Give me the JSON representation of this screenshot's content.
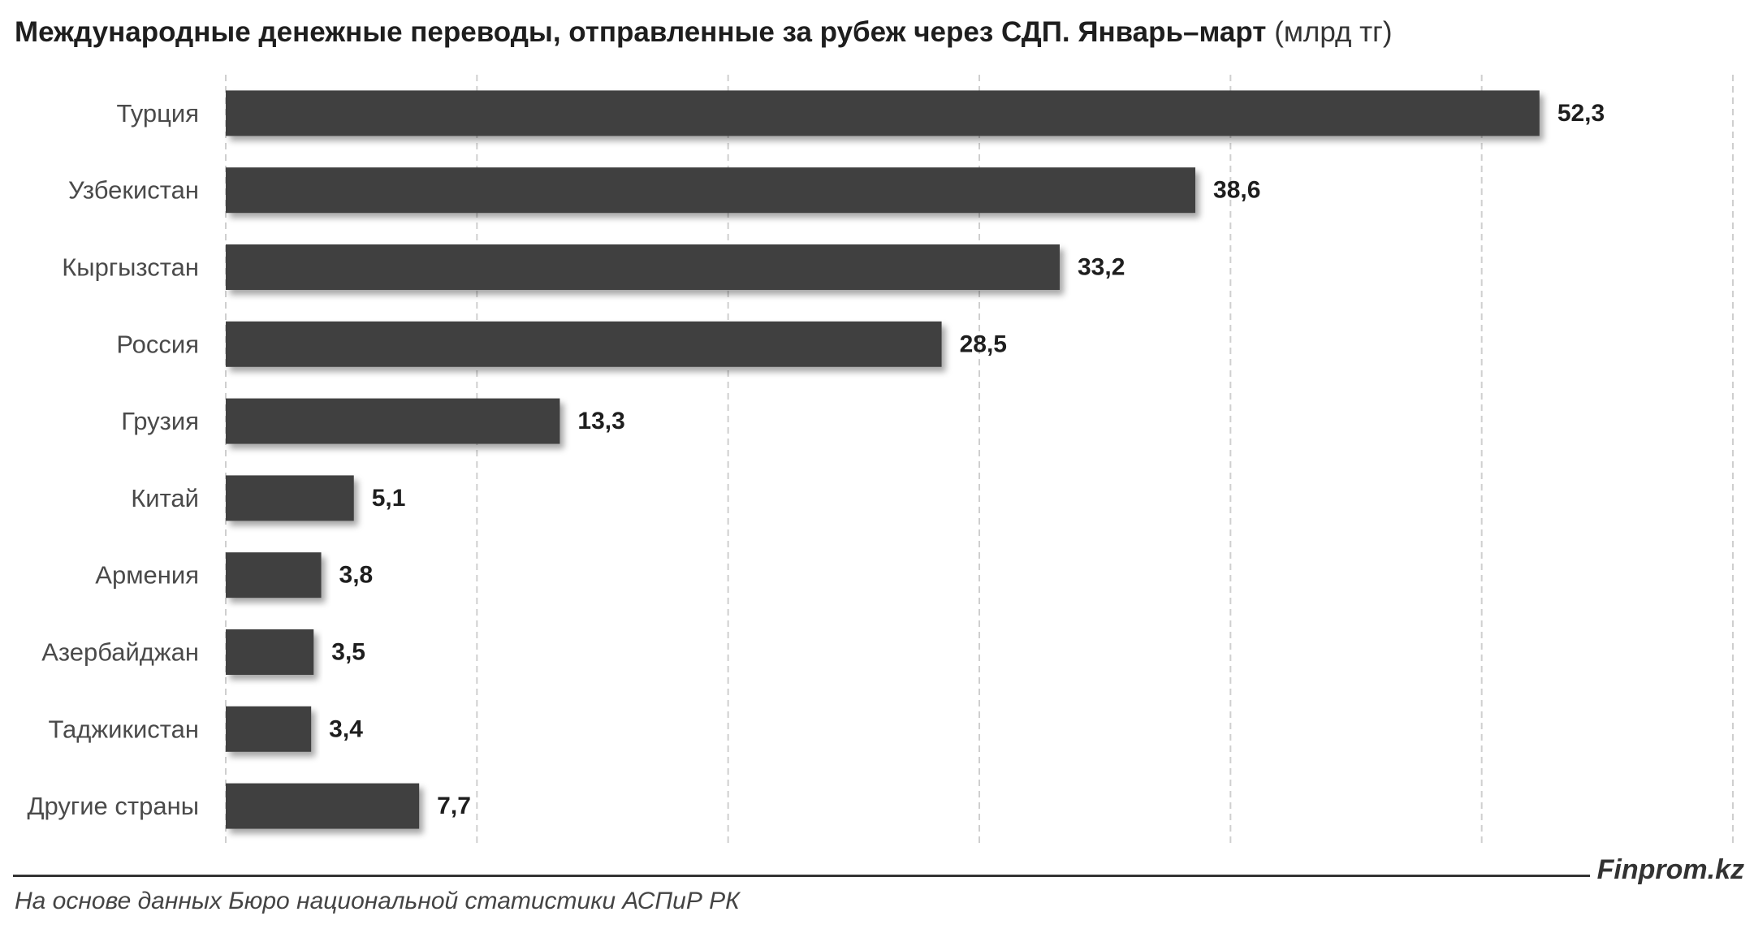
{
  "title": {
    "main": "Международные денежные переводы, отправленные за рубеж через СДП. Январь–март",
    "unit": "(млрд тг)"
  },
  "chart_data": {
    "type": "bar",
    "orientation": "horizontal",
    "categories": [
      "Турция",
      "Узбекистан",
      "Кыргызстан",
      "Россия",
      "Грузия",
      "Китай",
      "Армения",
      "Азербайджан",
      "Таджикистан",
      "Другие страны"
    ],
    "values": [
      52.3,
      38.6,
      33.2,
      28.5,
      13.3,
      5.1,
      3.8,
      3.5,
      3.4,
      7.7
    ],
    "value_labels": [
      "52,3",
      "38,6",
      "33,2",
      "28,5",
      "13,3",
      "5,1",
      "3,8",
      "3,5",
      "3,4",
      "7,7"
    ],
    "xlim": [
      0,
      60
    ],
    "x_grid_step": 10,
    "grid": "vertical dashed",
    "bar_color": "#404040",
    "grid_color": "#cfcfcf"
  },
  "footer": {
    "brand": "Finprom.kz",
    "source": "На основе данных Бюро национальной статистики АСПиР РК"
  }
}
